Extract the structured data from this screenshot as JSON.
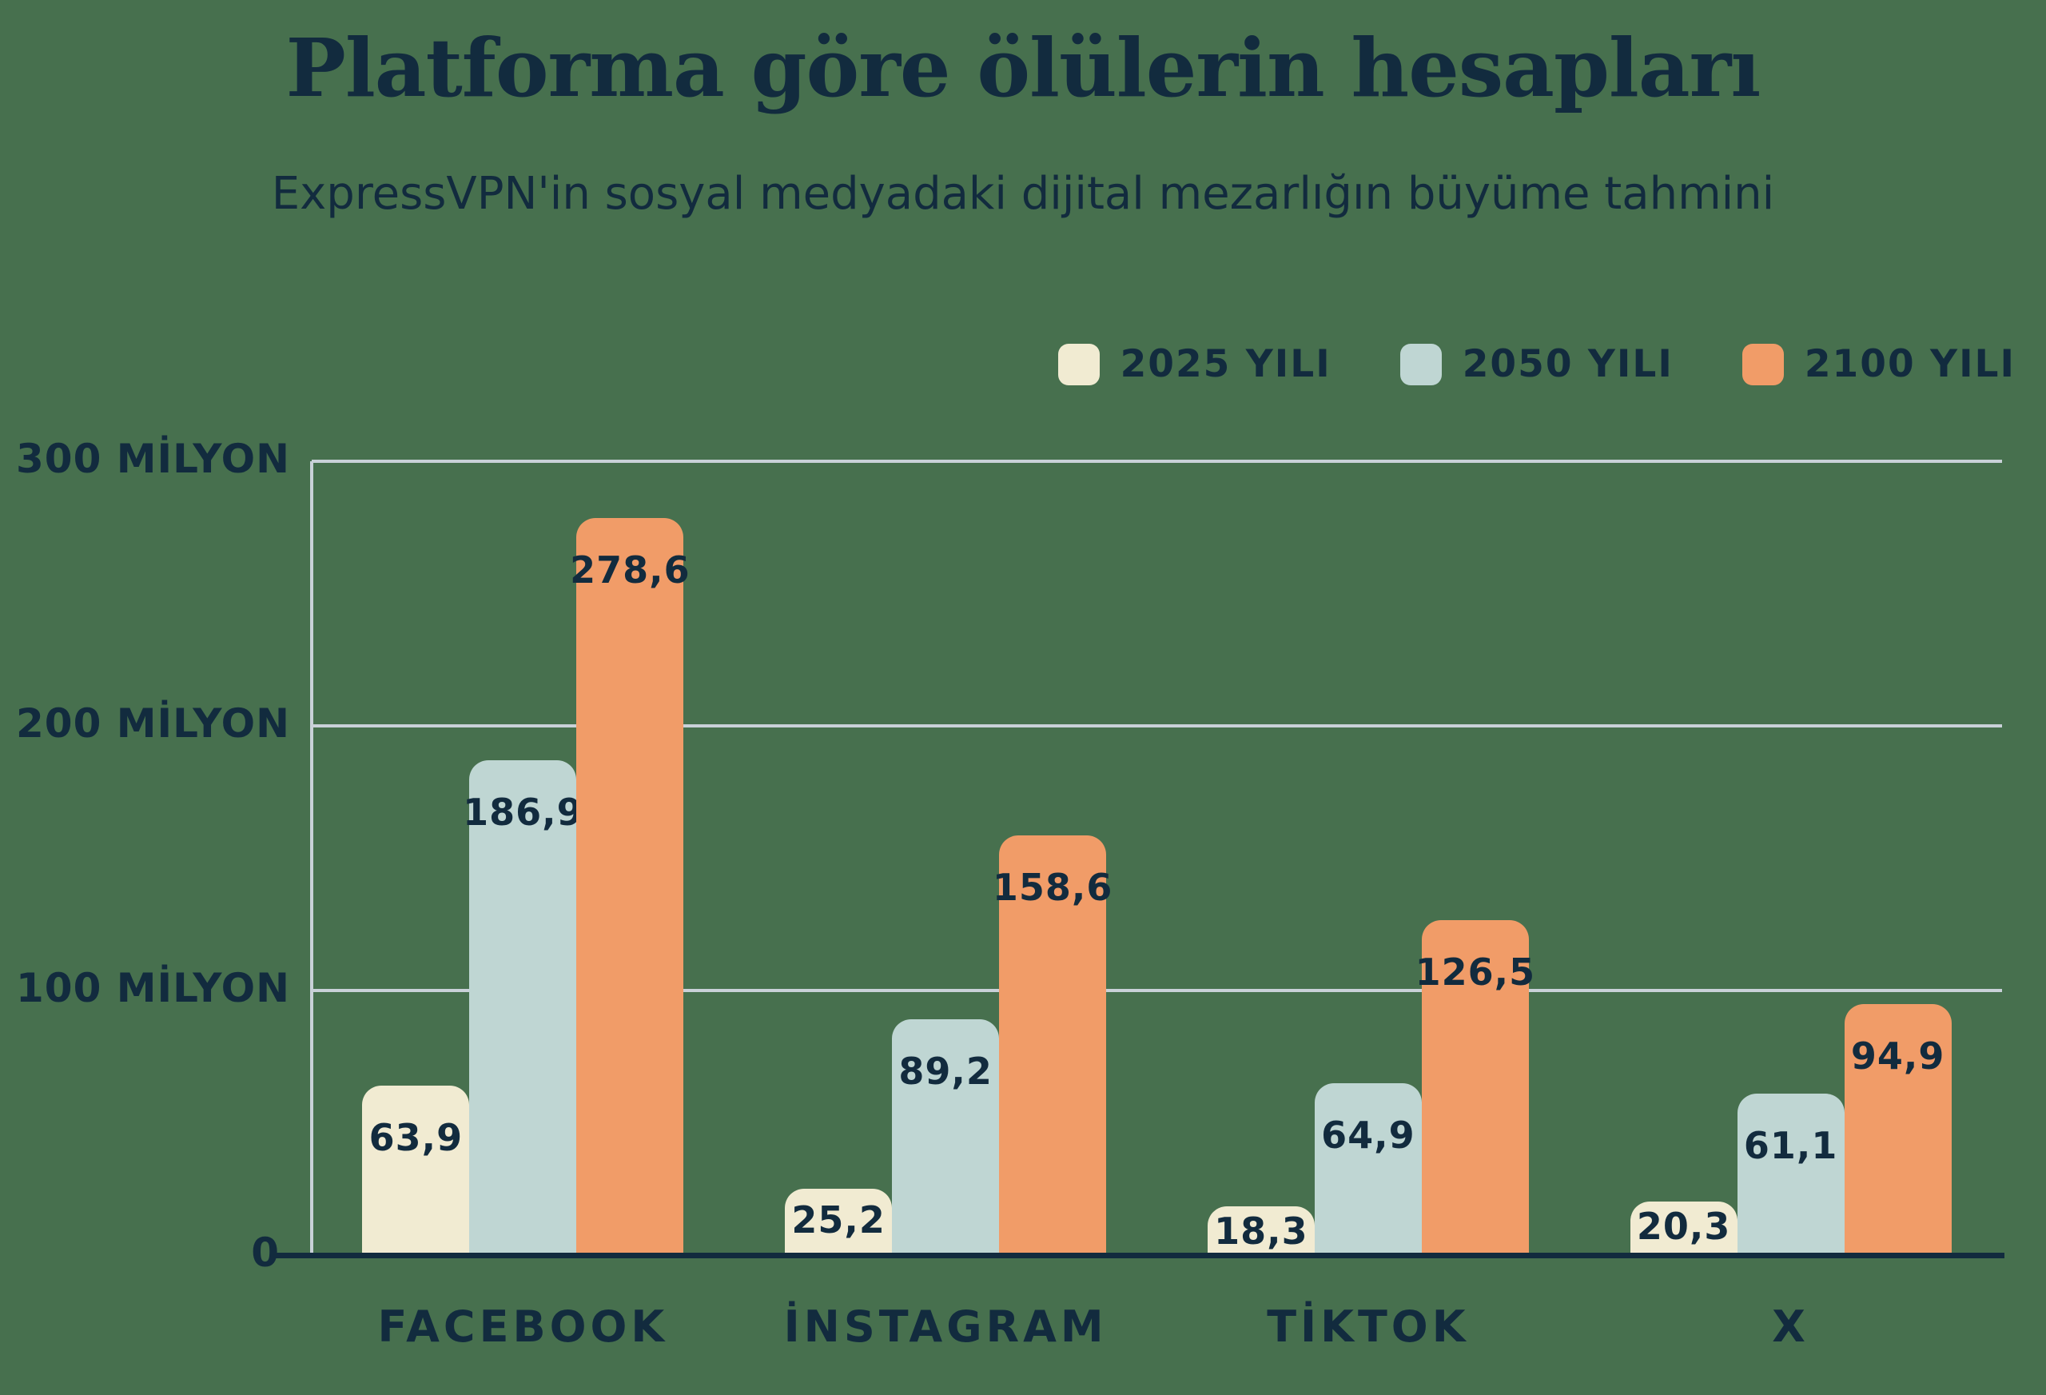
{
  "title": "Platforma göre ölülerin hesapları",
  "subtitle": "ExpressVPN'in sosyal medyadaki dijital mezarlığın büyüme tahmini",
  "colors": {
    "background": "#47704E",
    "text_navy": "#122B3E",
    "gridline": "#C9D1D8",
    "axis_line": "#C9D1D8",
    "baseline": "#122B3E",
    "series_2025": "#F1EBD2",
    "series_2050": "#BFD6D3",
    "series_2100": "#F19C68"
  },
  "legend": {
    "position": "top-right",
    "items": [
      {
        "label": "2025 YILI",
        "color_key": "series_2025"
      },
      {
        "label": "2050 YILI",
        "color_key": "series_2050"
      },
      {
        "label": "2100 YILI",
        "color_key": "series_2100"
      }
    ]
  },
  "chart_data": {
    "type": "bar",
    "categories": [
      "FACEBOOK",
      "İNSTAGRAM",
      "TİKTOK",
      "X"
    ],
    "series": [
      {
        "name": "2025 YILI",
        "color_key": "series_2025",
        "values": [
          63.9,
          25.2,
          18.3,
          20.3
        ],
        "value_labels": [
          "63,9",
          "25,2",
          "18,3",
          "20,3"
        ]
      },
      {
        "name": "2050 YILI",
        "color_key": "series_2050",
        "values": [
          186.9,
          89.2,
          64.9,
          61.1
        ],
        "value_labels": [
          "186,9",
          "89,2",
          "64,9",
          "61,1"
        ]
      },
      {
        "name": "2100 YILI",
        "color_key": "series_2100",
        "values": [
          278.6,
          158.6,
          126.5,
          94.9
        ],
        "value_labels": [
          "278,6",
          "158,6",
          "126,5",
          "94,9"
        ]
      }
    ],
    "unit": "milyon",
    "ylim": [
      0,
      300
    ],
    "yticks": [
      {
        "value": 300,
        "label": "300 MİLYON"
      },
      {
        "value": 200,
        "label": "200 MİLYON"
      },
      {
        "value": 100,
        "label": "100 MİLYON"
      },
      {
        "value": 0,
        "label": "0"
      }
    ],
    "grid": "horizontal",
    "legend_position": "top-right"
  }
}
